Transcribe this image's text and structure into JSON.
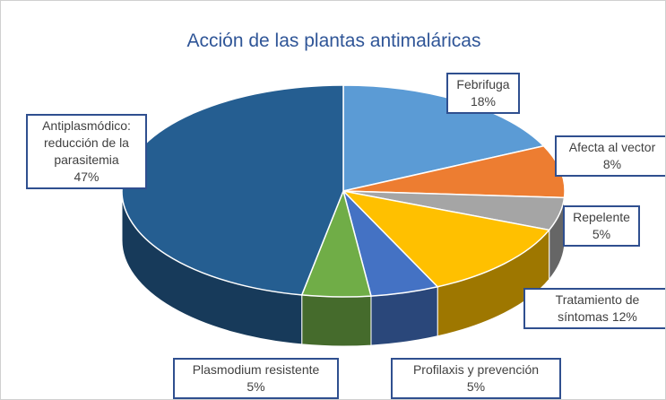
{
  "chart_data": {
    "type": "pie",
    "title": "Acción de las plantas antimaláricas",
    "categories": [
      "Febrifuga",
      "Afecta al vector",
      "Repelente",
      "Tratamiento de síntomas",
      "Profilaxis y prevención",
      "Plasmodium resistente",
      "Antiplasmódico: reducción de la parasitemia"
    ],
    "values": [
      18,
      8,
      5,
      12,
      5,
      5,
      47
    ],
    "value_labels": [
      "18%",
      "8%",
      "5%",
      "12%",
      "5%",
      "5%",
      "47%"
    ],
    "colors": [
      "#5b9bd5",
      "#ed7d31",
      "#a5a5a5",
      "#ffc000",
      "#4472c4",
      "#70ad47",
      "#255e91"
    ]
  }
}
